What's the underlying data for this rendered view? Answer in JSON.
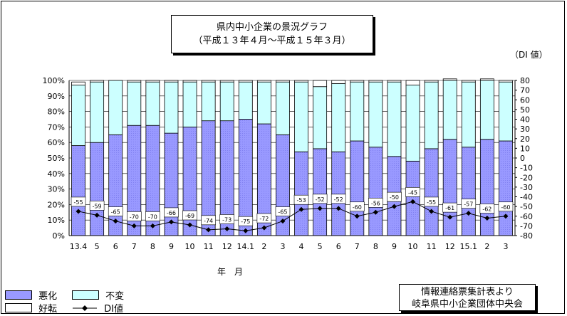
{
  "chart_data": {
    "type": "bar",
    "title_line1": "県内中小企業の景況グラフ",
    "title_line2": "（平成１３年４月～平成１５年３月）",
    "right_unit_label": "（DI 値）",
    "xlabel": "年　月",
    "source_line1": "情報連絡票集計表より",
    "source_line2": "岐阜県中小企業団体中央会",
    "categories": [
      "13.4",
      "5",
      "6",
      "7",
      "8",
      "9",
      "10",
      "11",
      "12",
      "14.1",
      "2",
      "3",
      "4",
      "5",
      "6",
      "7",
      "8",
      "9",
      "10",
      "11",
      "12",
      "15.1",
      "2",
      "3"
    ],
    "left_ticks": [
      "0%",
      "10%",
      "20%",
      "30%",
      "40%",
      "50%",
      "60%",
      "70%",
      "80%",
      "90%",
      "100%"
    ],
    "right_ticks": [
      "-80",
      "-70",
      "-60",
      "-50",
      "-40",
      "-30",
      "-20",
      "-10",
      "0",
      "10",
      "20",
      "30",
      "40",
      "50",
      "60",
      "70",
      "80"
    ],
    "left_ylim": [
      0,
      100
    ],
    "right_ylim": [
      -80,
      80
    ],
    "grid": true,
    "legend_position": "bottom-left",
    "series": [
      {
        "name": "好転",
        "color": "#ffffff",
        "values": [
          2,
          1,
          0,
          1,
          1,
          1,
          1,
          1,
          1,
          1,
          1,
          1,
          1,
          4,
          2,
          1,
          1,
          1,
          3,
          1,
          1,
          1,
          1,
          1
        ]
      },
      {
        "name": "不変",
        "color": "#ccffff",
        "values": [
          39,
          39,
          35,
          28,
          28,
          33,
          29,
          25,
          25,
          24,
          27,
          34,
          45,
          40,
          44,
          38,
          42,
          48,
          49,
          43,
          38,
          42,
          38,
          38
        ]
      },
      {
        "name": "悪化",
        "color": "#9999ff",
        "values": [
          58,
          60,
          65,
          71,
          71,
          66,
          70,
          74,
          74,
          75,
          72,
          65,
          54,
          56,
          54,
          61,
          57,
          51,
          48,
          56,
          62,
          57,
          62,
          61
        ]
      },
      {
        "name": "DI値",
        "color": "#000000",
        "values": [
          -55,
          -59,
          -65,
          -70,
          -70,
          -66,
          -69,
          -74,
          -73,
          -75,
          -72,
          -65,
          -53,
          -52,
          -52,
          -60,
          -56,
          -50,
          -45,
          -55,
          -61,
          -57,
          -62,
          -60
        ]
      }
    ]
  }
}
